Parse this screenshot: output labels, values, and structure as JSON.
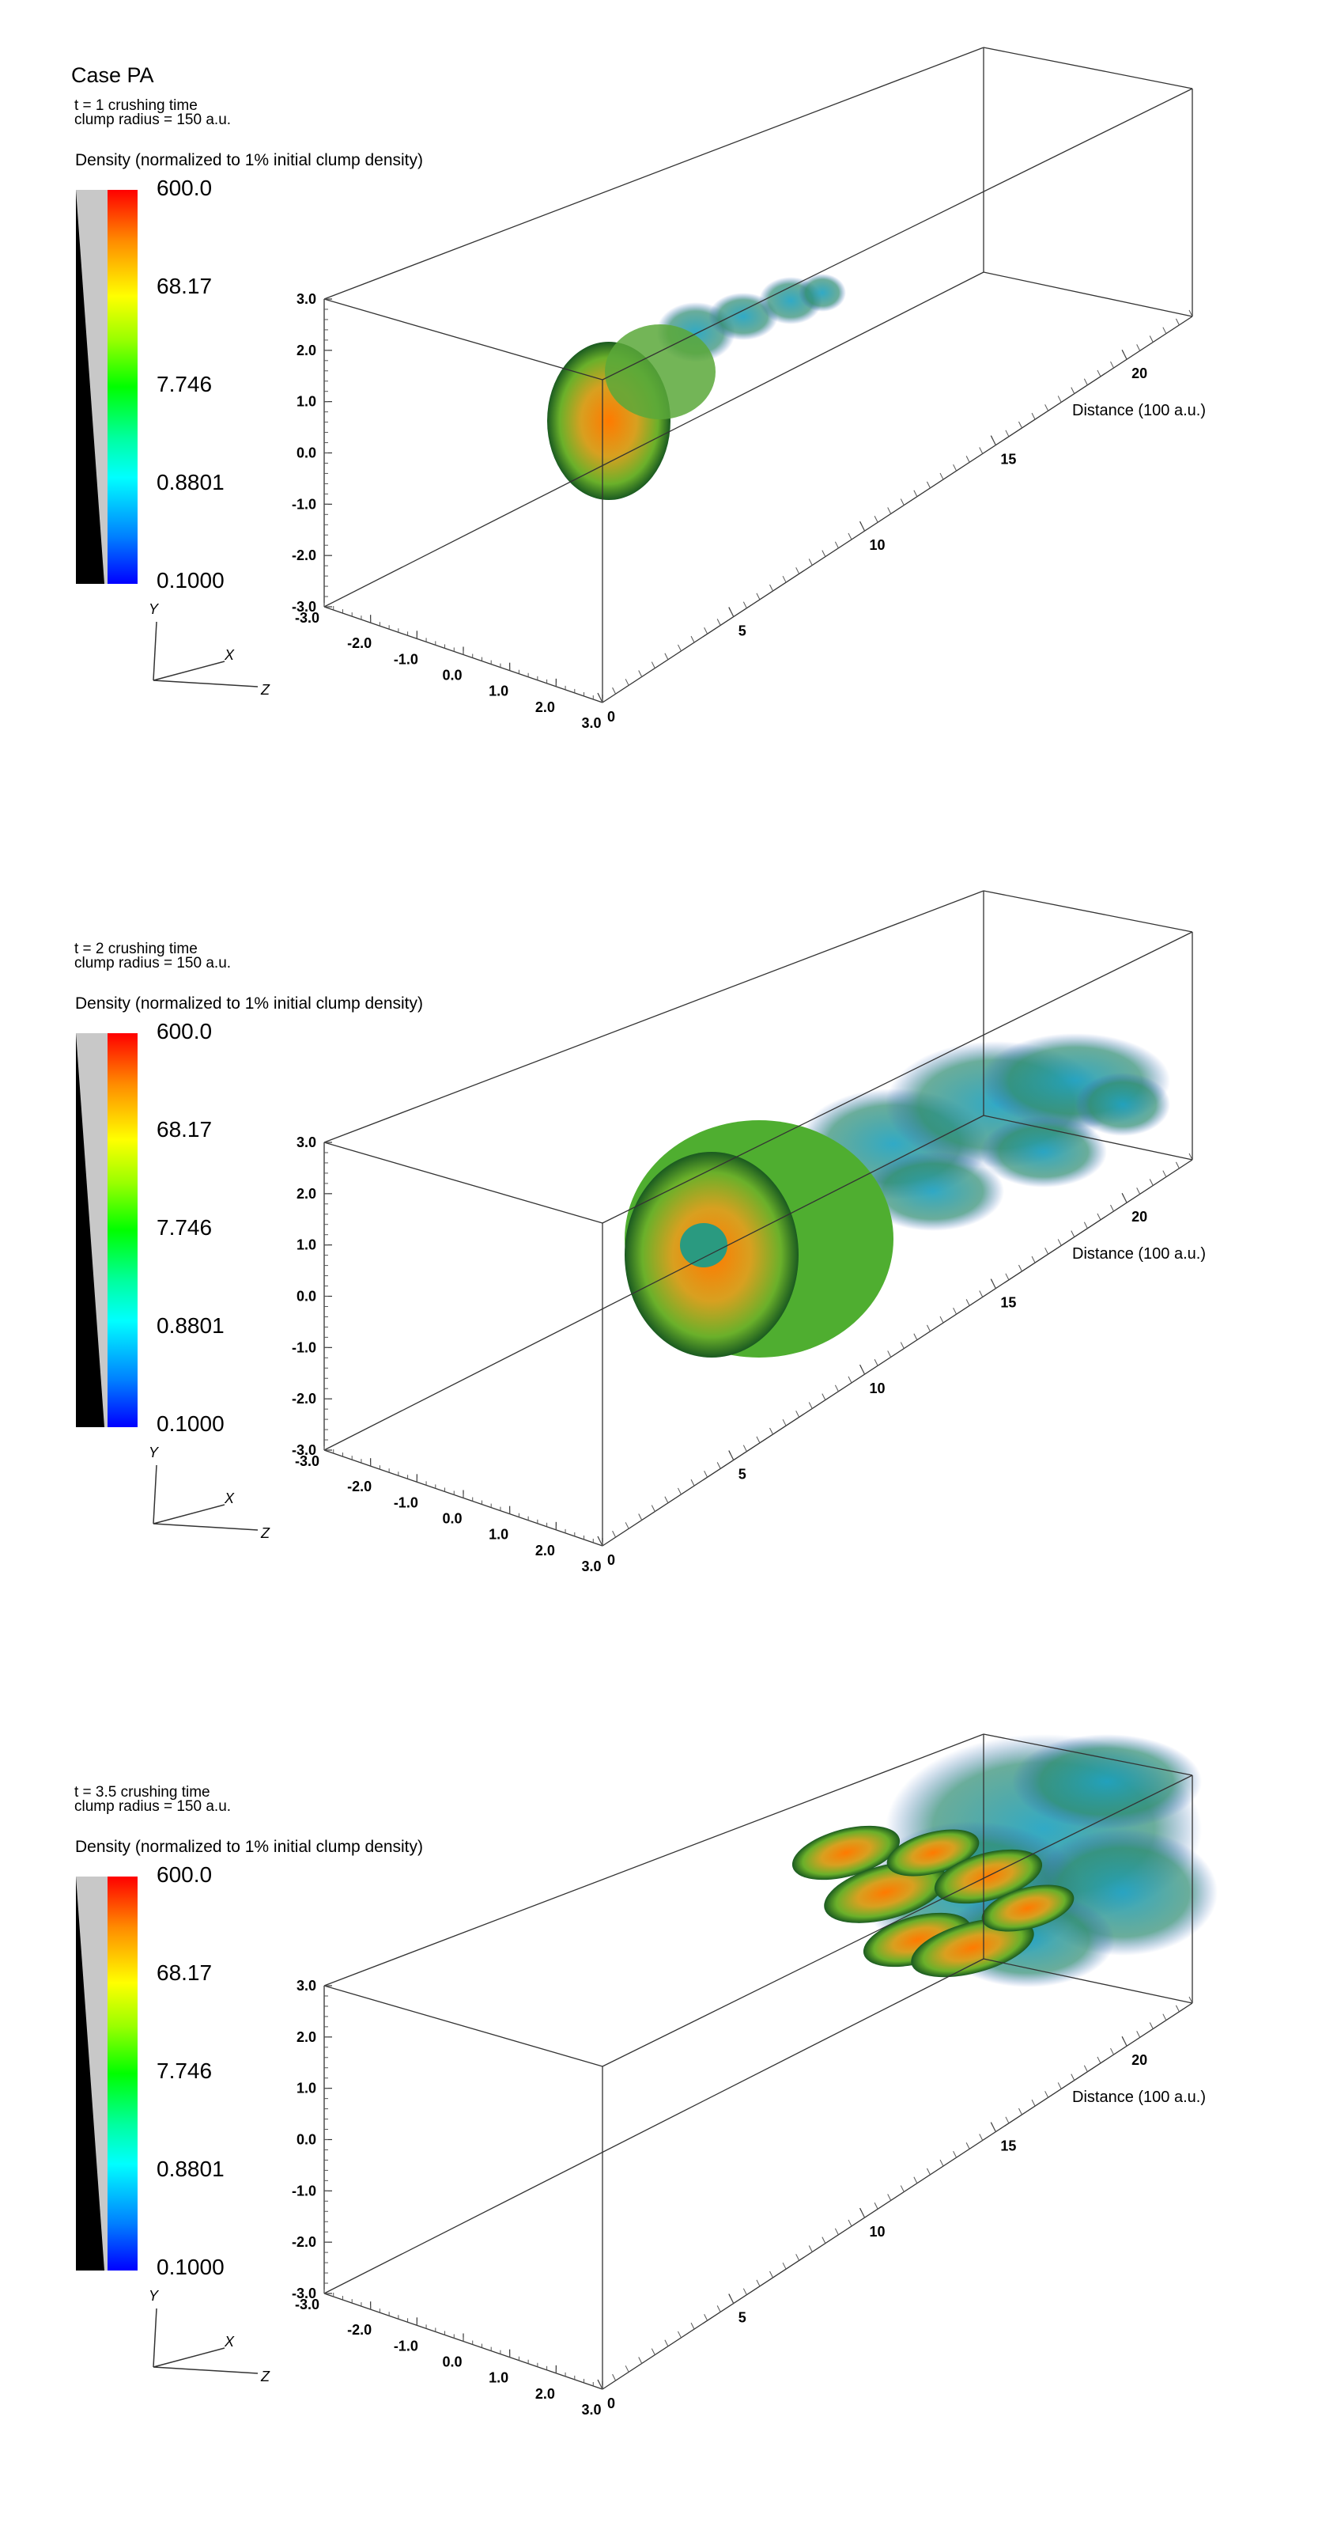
{
  "title": "Case PA",
  "colorbar": {
    "title": "Density (normalized to 1% initial clump density)",
    "labels": [
      "600.0",
      "68.17",
      "7.746",
      "0.8801",
      "0.1000"
    ]
  },
  "axes": {
    "yticks": [
      "3.0",
      "2.0",
      "1.0",
      "0.0",
      "-1.0",
      "-2.0",
      "-3.0"
    ],
    "xticks": [
      "-3.0",
      "-2.0",
      "-1.0",
      "0.0",
      "1.0",
      "2.0",
      "3.0"
    ],
    "zticks": [
      "0",
      "5",
      "10",
      "15",
      "20"
    ],
    "distance_label": "Distance (100 a.u.)",
    "triad": {
      "x": "X",
      "y": "Y",
      "z": "Z"
    }
  },
  "panels": [
    {
      "time_label": "t = 1 crushing time",
      "radius_label": "clump radius = 150 a.u."
    },
    {
      "time_label": "t = 2 crushing time",
      "radius_label": "clump radius = 150 a.u."
    },
    {
      "time_label": "t = 3.5 crushing time",
      "radius_label": "clump radius = 150 a.u."
    }
  ]
}
